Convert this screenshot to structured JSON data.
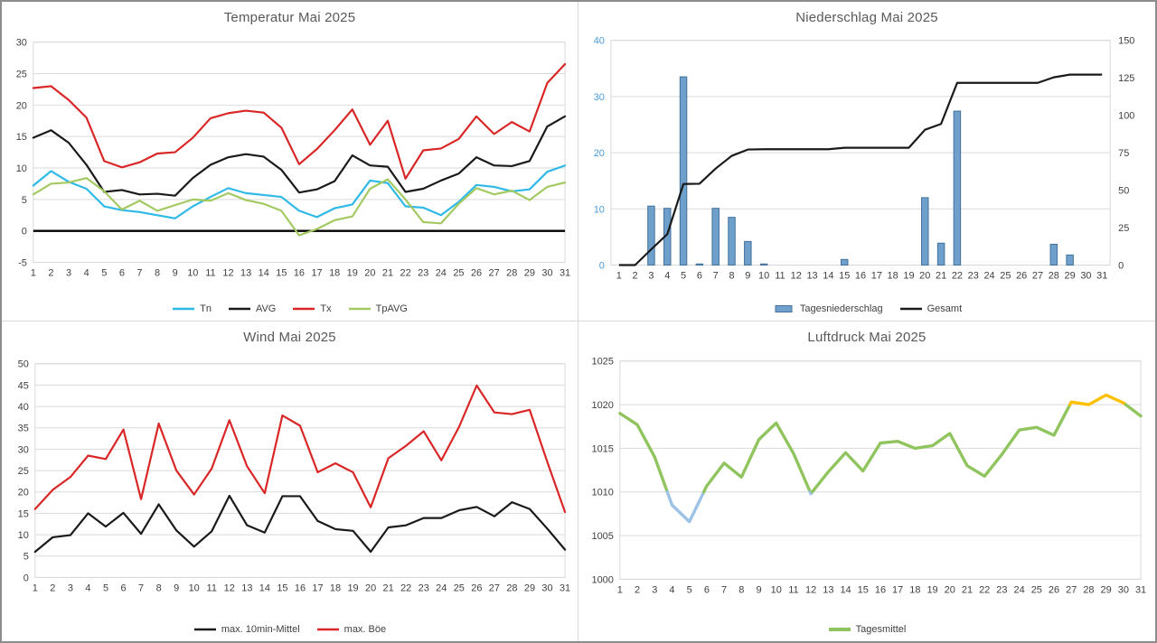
{
  "style": {
    "background": "#FFFFFF",
    "outer_border_color": "#8C8C8C",
    "divider_color": "#D9D9D9",
    "gridline_color": "#D9D9D9",
    "title_color": "#595959",
    "axis_label_color": "#404040"
  },
  "chart_data": [
    {
      "type": "line",
      "title": "Temperatur Mai 2025",
      "categories": [
        1,
        2,
        3,
        4,
        5,
        6,
        7,
        8,
        9,
        10,
        11,
        12,
        13,
        14,
        15,
        16,
        17,
        18,
        19,
        20,
        21,
        22,
        23,
        24,
        25,
        26,
        27,
        28,
        29,
        30,
        31
      ],
      "ylim": [
        -5,
        30
      ],
      "ytick": 5,
      "zero_line": true,
      "legend_position": "bottom",
      "series": [
        {
          "name": "Tn",
          "color": "#2EB9E6",
          "values": [
            7.2,
            9.5,
            7.8,
            6.7,
            3.9,
            3.3,
            3.0,
            2.5,
            2.0,
            3.9,
            5.4,
            6.8,
            6.0,
            5.7,
            5.4,
            3.2,
            2.2,
            3.6,
            4.2,
            8.0,
            7.6,
            3.9,
            3.7,
            2.5,
            4.6,
            7.3,
            7.0,
            6.3,
            6.6,
            9.4,
            10.4
          ]
        },
        {
          "name": "AVG",
          "color": "#1A1A1A",
          "values": [
            14.8,
            16.0,
            14.0,
            10.5,
            6.2,
            6.5,
            5.8,
            5.9,
            5.6,
            8.4,
            10.5,
            11.7,
            12.2,
            11.8,
            9.7,
            6.1,
            6.6,
            7.9,
            12.0,
            10.4,
            10.2,
            6.2,
            6.7,
            8.0,
            9.1,
            11.7,
            10.4,
            10.3,
            11.1,
            16.6,
            18.2
          ]
        },
        {
          "name": "Tx",
          "color": "#D92626",
          "values": [
            22.7,
            23.0,
            20.8,
            18.0,
            11.1,
            10.1,
            10.9,
            12.3,
            12.5,
            14.8,
            17.9,
            18.7,
            19.1,
            18.8,
            16.4,
            10.6,
            13.0,
            16.0,
            19.3,
            13.7,
            17.5,
            8.3,
            12.8,
            13.1,
            14.6,
            18.2,
            15.4,
            17.3,
            15.8,
            23.5,
            26.5
          ]
        },
        {
          "name": "TpAVG",
          "color": "#A3C962",
          "values": [
            5.8,
            7.5,
            7.7,
            8.4,
            6.3,
            3.4,
            4.8,
            3.2,
            4.1,
            5.0,
            4.8,
            6.0,
            4.9,
            4.3,
            3.2,
            -0.7,
            0.3,
            1.7,
            2.3,
            6.7,
            8.2,
            5.0,
            1.4,
            1.2,
            4.3,
            6.8,
            5.8,
            6.4,
            4.9,
            7.0,
            7.7
          ]
        }
      ]
    },
    {
      "type": "bar-line",
      "title": "Niederschlag Mai 2025",
      "categories": [
        1,
        2,
        3,
        4,
        5,
        6,
        7,
        8,
        9,
        10,
        11,
        12,
        13,
        14,
        15,
        16,
        17,
        18,
        19,
        20,
        21,
        22,
        23,
        24,
        25,
        26,
        27,
        28,
        29,
        30,
        31
      ],
      "left": {
        "ylim": [
          0,
          40
        ],
        "ytick": 10,
        "label_color": "#4D9AD4"
      },
      "right": {
        "ylim": [
          0,
          150
        ],
        "ytick": 25,
        "label_color": "#404040"
      },
      "bars": {
        "name": "Tagesniederschlag",
        "fill": "#6FA0CB",
        "stroke": "#41719C",
        "axis": "left",
        "values": [
          0,
          0,
          10.5,
          10.1,
          33.5,
          0.2,
          10.1,
          8.5,
          4.2,
          0.2,
          0,
          0,
          0,
          0,
          1.0,
          0,
          0,
          0,
          0,
          12.0,
          3.9,
          27.4,
          0,
          0,
          0,
          0,
          0,
          3.7,
          1.8,
          0,
          0
        ]
      },
      "line": {
        "name": "Gesamt",
        "color": "#1A1A1A",
        "axis": "right",
        "values": [
          0,
          0,
          10.5,
          20.6,
          54.1,
          54.3,
          64.4,
          72.9,
          77.1,
          77.3,
          77.3,
          77.3,
          77.3,
          77.3,
          78.3,
          78.3,
          78.3,
          78.3,
          78.3,
          90.3,
          94.2,
          121.6,
          121.6,
          121.6,
          121.6,
          121.6,
          121.6,
          125.3,
          127.1,
          127.1,
          127.1
        ]
      }
    },
    {
      "type": "line",
      "title": "Wind Mai 2025",
      "categories": [
        1,
        2,
        3,
        4,
        5,
        6,
        7,
        8,
        9,
        10,
        11,
        12,
        13,
        14,
        15,
        16,
        17,
        18,
        19,
        20,
        21,
        22,
        23,
        24,
        25,
        26,
        27,
        28,
        29,
        30,
        31
      ],
      "ylim": [
        0,
        50
      ],
      "ytick": 5,
      "zero_line": false,
      "legend_position": "bottom",
      "series": [
        {
          "name": "max. 10min-Mittel",
          "color": "#1A1A1A",
          "values": [
            6.0,
            9.4,
            9.9,
            15.0,
            11.9,
            15.1,
            10.2,
            17.1,
            11.0,
            7.2,
            10.8,
            19.1,
            12.2,
            10.5,
            19.0,
            19.0,
            13.2,
            11.3,
            10.9,
            6.0,
            11.7,
            12.2,
            13.9,
            13.9,
            15.7,
            16.5,
            14.3,
            17.6,
            16.0,
            11.4,
            6.5
          ]
        },
        {
          "name": "max. Böe",
          "color": "#D92626",
          "values": [
            16.0,
            20.5,
            23.5,
            28.5,
            27.7,
            34.6,
            18.3,
            36.0,
            25.0,
            19.4,
            25.5,
            36.8,
            26.0,
            19.7,
            37.9,
            35.5,
            24.6,
            26.7,
            24.6,
            16.4,
            27.9,
            30.8,
            34.2,
            27.4,
            35.2,
            44.9,
            38.6,
            38.2,
            39.2,
            27.0,
            15.3
          ]
        }
      ]
    },
    {
      "type": "banded-line",
      "title": "Luftdruck Mai 2025",
      "categories": [
        1,
        2,
        3,
        4,
        5,
        6,
        7,
        8,
        9,
        10,
        11,
        12,
        13,
        14,
        15,
        16,
        17,
        18,
        19,
        20,
        21,
        22,
        23,
        24,
        25,
        26,
        27,
        28,
        29,
        30,
        31
      ],
      "ylim": [
        1000,
        1025
      ],
      "ytick": 5,
      "series_name": "Tagesmittel",
      "bands": {
        "low_threshold": 1010,
        "high_threshold": 1020,
        "low_color": "#9CC2E5",
        "mid_color": "#90C45E",
        "high_color": "#FFC000"
      },
      "values": [
        1019.0,
        1017.7,
        1014.0,
        1008.5,
        1006.6,
        1010.7,
        1013.3,
        1011.7,
        1016.0,
        1017.9,
        1014.4,
        1009.8,
        1012.3,
        1014.5,
        1012.4,
        1015.6,
        1015.8,
        1015.0,
        1015.3,
        1016.7,
        1013.0,
        1011.8,
        1014.3,
        1017.1,
        1017.4,
        1016.5,
        1020.3,
        1020.0,
        1021.1,
        1020.2,
        1018.7
      ]
    }
  ]
}
